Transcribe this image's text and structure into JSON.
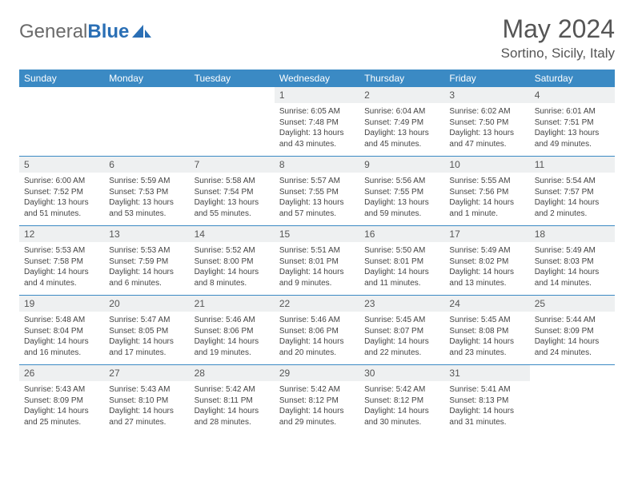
{
  "brand": {
    "part1": "General",
    "part2": "Blue"
  },
  "title": "May 2024",
  "location": "Sortino, Sicily, Italy",
  "colors": {
    "header_bg": "#3b8ac4",
    "header_text": "#ffffff",
    "daynum_bg": "#eef0f1",
    "text": "#555555",
    "body_text": "#444444",
    "rule": "#3b8ac4"
  },
  "typography": {
    "title_fontsize": 32,
    "location_fontsize": 17,
    "dayhead_fontsize": 12,
    "daynum_fontsize": 12,
    "cell_fontsize": 10
  },
  "day_headers": [
    "Sunday",
    "Monday",
    "Tuesday",
    "Wednesday",
    "Thursday",
    "Friday",
    "Saturday"
  ],
  "weeks": [
    [
      {
        "n": "",
        "t": ""
      },
      {
        "n": "",
        "t": ""
      },
      {
        "n": "",
        "t": ""
      },
      {
        "n": "1",
        "t": "Sunrise: 6:05 AM\nSunset: 7:48 PM\nDaylight: 13 hours and 43 minutes."
      },
      {
        "n": "2",
        "t": "Sunrise: 6:04 AM\nSunset: 7:49 PM\nDaylight: 13 hours and 45 minutes."
      },
      {
        "n": "3",
        "t": "Sunrise: 6:02 AM\nSunset: 7:50 PM\nDaylight: 13 hours and 47 minutes."
      },
      {
        "n": "4",
        "t": "Sunrise: 6:01 AM\nSunset: 7:51 PM\nDaylight: 13 hours and 49 minutes."
      }
    ],
    [
      {
        "n": "5",
        "t": "Sunrise: 6:00 AM\nSunset: 7:52 PM\nDaylight: 13 hours and 51 minutes."
      },
      {
        "n": "6",
        "t": "Sunrise: 5:59 AM\nSunset: 7:53 PM\nDaylight: 13 hours and 53 minutes."
      },
      {
        "n": "7",
        "t": "Sunrise: 5:58 AM\nSunset: 7:54 PM\nDaylight: 13 hours and 55 minutes."
      },
      {
        "n": "8",
        "t": "Sunrise: 5:57 AM\nSunset: 7:55 PM\nDaylight: 13 hours and 57 minutes."
      },
      {
        "n": "9",
        "t": "Sunrise: 5:56 AM\nSunset: 7:55 PM\nDaylight: 13 hours and 59 minutes."
      },
      {
        "n": "10",
        "t": "Sunrise: 5:55 AM\nSunset: 7:56 PM\nDaylight: 14 hours and 1 minute."
      },
      {
        "n": "11",
        "t": "Sunrise: 5:54 AM\nSunset: 7:57 PM\nDaylight: 14 hours and 2 minutes."
      }
    ],
    [
      {
        "n": "12",
        "t": "Sunrise: 5:53 AM\nSunset: 7:58 PM\nDaylight: 14 hours and 4 minutes."
      },
      {
        "n": "13",
        "t": "Sunrise: 5:53 AM\nSunset: 7:59 PM\nDaylight: 14 hours and 6 minutes."
      },
      {
        "n": "14",
        "t": "Sunrise: 5:52 AM\nSunset: 8:00 PM\nDaylight: 14 hours and 8 minutes."
      },
      {
        "n": "15",
        "t": "Sunrise: 5:51 AM\nSunset: 8:01 PM\nDaylight: 14 hours and 9 minutes."
      },
      {
        "n": "16",
        "t": "Sunrise: 5:50 AM\nSunset: 8:01 PM\nDaylight: 14 hours and 11 minutes."
      },
      {
        "n": "17",
        "t": "Sunrise: 5:49 AM\nSunset: 8:02 PM\nDaylight: 14 hours and 13 minutes."
      },
      {
        "n": "18",
        "t": "Sunrise: 5:49 AM\nSunset: 8:03 PM\nDaylight: 14 hours and 14 minutes."
      }
    ],
    [
      {
        "n": "19",
        "t": "Sunrise: 5:48 AM\nSunset: 8:04 PM\nDaylight: 14 hours and 16 minutes."
      },
      {
        "n": "20",
        "t": "Sunrise: 5:47 AM\nSunset: 8:05 PM\nDaylight: 14 hours and 17 minutes."
      },
      {
        "n": "21",
        "t": "Sunrise: 5:46 AM\nSunset: 8:06 PM\nDaylight: 14 hours and 19 minutes."
      },
      {
        "n": "22",
        "t": "Sunrise: 5:46 AM\nSunset: 8:06 PM\nDaylight: 14 hours and 20 minutes."
      },
      {
        "n": "23",
        "t": "Sunrise: 5:45 AM\nSunset: 8:07 PM\nDaylight: 14 hours and 22 minutes."
      },
      {
        "n": "24",
        "t": "Sunrise: 5:45 AM\nSunset: 8:08 PM\nDaylight: 14 hours and 23 minutes."
      },
      {
        "n": "25",
        "t": "Sunrise: 5:44 AM\nSunset: 8:09 PM\nDaylight: 14 hours and 24 minutes."
      }
    ],
    [
      {
        "n": "26",
        "t": "Sunrise: 5:43 AM\nSunset: 8:09 PM\nDaylight: 14 hours and 25 minutes."
      },
      {
        "n": "27",
        "t": "Sunrise: 5:43 AM\nSunset: 8:10 PM\nDaylight: 14 hours and 27 minutes."
      },
      {
        "n": "28",
        "t": "Sunrise: 5:42 AM\nSunset: 8:11 PM\nDaylight: 14 hours and 28 minutes."
      },
      {
        "n": "29",
        "t": "Sunrise: 5:42 AM\nSunset: 8:12 PM\nDaylight: 14 hours and 29 minutes."
      },
      {
        "n": "30",
        "t": "Sunrise: 5:42 AM\nSunset: 8:12 PM\nDaylight: 14 hours and 30 minutes."
      },
      {
        "n": "31",
        "t": "Sunrise: 5:41 AM\nSunset: 8:13 PM\nDaylight: 14 hours and 31 minutes."
      },
      {
        "n": "",
        "t": ""
      }
    ]
  ]
}
